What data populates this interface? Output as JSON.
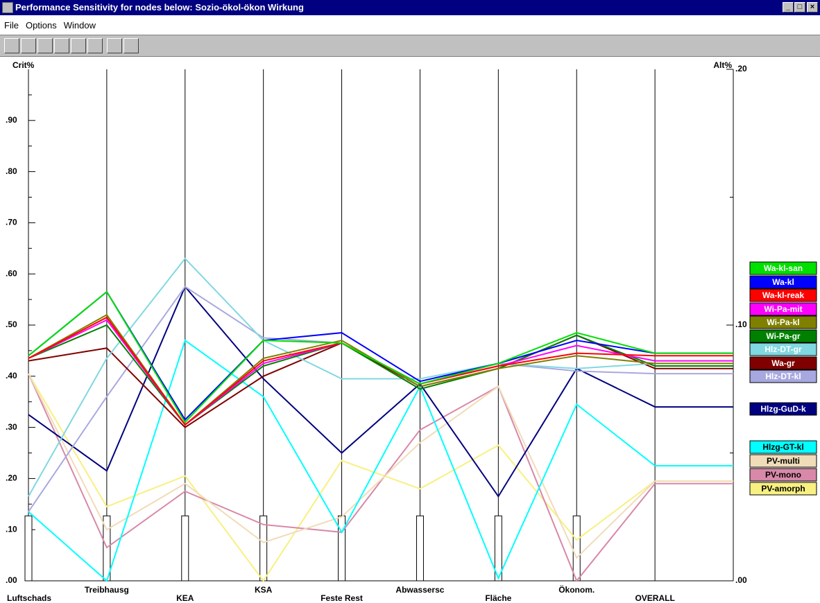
{
  "window": {
    "title": "Performance Sensitivity for nodes below: Sozio-ökol-ökon Wirkung",
    "menu": [
      "File",
      "Options",
      "Window"
    ]
  },
  "chart_data": {
    "type": "line",
    "ylabel": "Crit%",
    "y2label": "Alt%",
    "categories": [
      "Luftschads",
      "Treibhausg",
      "KEA",
      "KSA",
      "Feste Rest",
      "Abwassersc",
      "Fläche",
      "Ökonom.",
      "OVERALL"
    ],
    "weights": [
      0.127,
      0.127,
      0.127,
      0.127,
      0.127,
      0.127,
      0.127,
      0.127
    ],
    "ylim": [
      0,
      1
    ],
    "yticks": [
      {
        "value": 0,
        "label": ".00"
      },
      {
        "value": 0.1,
        "label": ".10"
      },
      {
        "value": 0.2,
        "label": ".20"
      },
      {
        "value": 0.3,
        "label": ".30"
      },
      {
        "value": 0.4,
        "label": ".40"
      },
      {
        "value": 0.5,
        "label": ".50"
      },
      {
        "value": 0.6,
        "label": ".60"
      },
      {
        "value": 0.7,
        "label": ".70"
      },
      {
        "value": 0.8,
        "label": ".80"
      },
      {
        "value": 0.9,
        "label": ".90"
      }
    ],
    "y2lim": [
      0,
      0.2
    ],
    "y2ticks": [
      {
        "value": 0,
        "label": ".00"
      },
      {
        "value": 0.1,
        "label": ".10"
      },
      {
        "value": 0.2,
        "label": ".20"
      }
    ],
    "series": [
      {
        "name": "Wa-kl-san",
        "color": "#00e000",
        "text_color": "#ffffff",
        "values": [
          0.44,
          0.565,
          0.31,
          0.47,
          0.465,
          0.385,
          0.425,
          0.485,
          0.445
        ]
      },
      {
        "name": "Wa-kl",
        "color": "#0000ff",
        "text_color": "#ffffff",
        "values": [
          0.44,
          0.565,
          0.315,
          0.47,
          0.485,
          0.39,
          0.425,
          0.47,
          0.445
        ]
      },
      {
        "name": "Wa-kl-reak",
        "color": "#ff0000",
        "text_color": "#ffffff",
        "values": [
          0.435,
          0.515,
          0.305,
          0.43,
          0.465,
          0.385,
          0.42,
          0.445,
          0.44
        ]
      },
      {
        "name": "Wi-Pa-mit",
        "color": "#ff00ff",
        "text_color": "#ffffff",
        "values": [
          0.435,
          0.51,
          0.305,
          0.425,
          0.465,
          0.385,
          0.42,
          0.46,
          0.43
        ]
      },
      {
        "name": "Wi-Pa-kl",
        "color": "#808000",
        "text_color": "#ffffff",
        "values": [
          0.435,
          0.52,
          0.305,
          0.435,
          0.47,
          0.38,
          0.415,
          0.44,
          0.425
        ]
      },
      {
        "name": "Wi-Pa-gr",
        "color": "#008000",
        "text_color": "#ffffff",
        "values": [
          0.435,
          0.5,
          0.305,
          0.42,
          0.465,
          0.375,
          0.415,
          0.48,
          0.42
        ]
      },
      {
        "name": "Hlz-DT-gr",
        "color": "#80d8e0",
        "text_color": "#ffffff",
        "values": [
          0.165,
          0.435,
          0.63,
          0.47,
          0.395,
          0.395,
          0.425,
          0.415,
          0.425
        ]
      },
      {
        "name": "Wa-gr",
        "color": "#800000",
        "text_color": "#ffffff",
        "values": [
          0.43,
          0.455,
          0.3,
          0.4,
          0.465,
          0.38,
          0.415,
          0.48,
          0.415
        ]
      },
      {
        "name": "Hlz-DT-kl",
        "color": "#a8a8e0",
        "text_color": "#ffffff",
        "values": [
          0.135,
          0.36,
          0.575,
          0.475,
          0.465,
          0.385,
          0.425,
          0.41,
          0.405
        ]
      },
      {
        "name": "Hlzg-GuD-k",
        "color": "#000080",
        "text_color": "#ffffff",
        "values": [
          0.325,
          0.215,
          0.575,
          0.395,
          0.25,
          0.385,
          0.165,
          0.415,
          0.34
        ]
      },
      {
        "name": "Hlzg-GT-kl",
        "color": "#00ffff",
        "text_color": "#000000",
        "values": [
          0.135,
          0,
          0.47,
          0.36,
          0.095,
          0.38,
          0.005,
          0.345,
          0.225
        ]
      },
      {
        "name": "PV-multi",
        "color": "#f0dcb8",
        "text_color": "#000000",
        "values": [
          0.405,
          0.1,
          0.19,
          0.075,
          0.125,
          0.27,
          0.38,
          0.045,
          0.195
        ]
      },
      {
        "name": "PV-mono",
        "color": "#d888a8",
        "text_color": "#000000",
        "values": [
          0.405,
          0.065,
          0.175,
          0.11,
          0.095,
          0.295,
          0.38,
          0,
          0.19
        ]
      },
      {
        "name": "PV-amorph",
        "color": "#f8f080",
        "text_color": "#000000",
        "values": [
          0.405,
          0.145,
          0.205,
          0,
          0.235,
          0.18,
          0.265,
          0.08,
          0.195
        ]
      }
    ]
  }
}
